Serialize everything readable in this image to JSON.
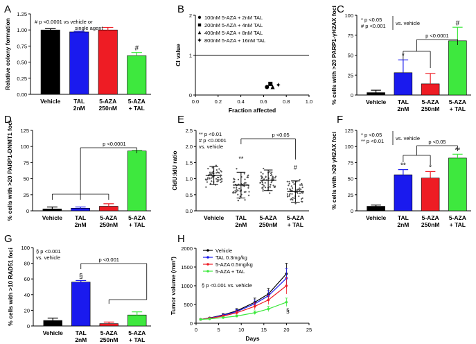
{
  "chart_data": [
    {
      "panel": "A",
      "type": "bar",
      "categories": [
        "Vehicle",
        "TAL 2nM",
        "5-AZA 250nM",
        "5-AZA + TAL"
      ],
      "category_lines": [
        [
          "Vehicle"
        ],
        [
          "TAL",
          "2nM"
        ],
        [
          "5-AZA",
          "250nM"
        ],
        [
          "5-AZA",
          "+ TAL"
        ]
      ],
      "values": [
        1.0,
        0.97,
        1.0,
        0.6
      ],
      "errors": [
        0.02,
        0.01,
        0.04,
        0.05
      ],
      "colors": [
        "#000000",
        "#1a1aee",
        "#ee1c24",
        "#3ee83e"
      ],
      "ylabel": "Relative colony formation",
      "ylim": [
        0,
        1.25
      ],
      "yticks": [
        0.0,
        0.25,
        0.5,
        0.75,
        1.0,
        1.25
      ],
      "ytick_labels": [
        "0.00",
        "0.25",
        "0.50",
        "0.75",
        "1.00",
        "1.25"
      ],
      "annotations": [
        {
          "text": "# p <0.0001 vs vehicle or",
          "lines": [
            "# p <0.0001 vs vehicle or",
            "single agent"
          ]
        }
      ],
      "bar_marks": [
        {
          "index": 3,
          "text": "#"
        }
      ]
    },
    {
      "panel": "B",
      "type": "scatter",
      "xlabel": "Fraction affected",
      "ylabel": "CI value",
      "xlim": [
        0,
        1.0
      ],
      "ylim": [
        0,
        2
      ],
      "xticks": [
        0,
        0.2,
        0.4,
        0.6,
        0.8,
        1.0
      ],
      "xtick_labels": [
        "0.0",
        "0.2",
        "0.4",
        "0.6",
        "0.8",
        "1.0"
      ],
      "yticks": [
        0,
        1,
        2
      ],
      "ytick_labels": [
        "0",
        "1",
        "2"
      ],
      "reference_line": 1,
      "series": [
        {
          "name": "100nM 5-AZA + 2nM TAL",
          "marker": "circle",
          "x": 0.63,
          "y": 0.2
        },
        {
          "name": "200nM 5-AZA + 4nM TAL",
          "marker": "square",
          "x": 0.66,
          "y": 0.28
        },
        {
          "name": "400nM 5-AZA + 8nM TAL",
          "marker": "triangle",
          "x": 0.68,
          "y": 0.2
        },
        {
          "name": "800nM 5-AZA + 16nM TAL",
          "marker": "star",
          "x": 0.73,
          "y": 0.25
        }
      ]
    },
    {
      "panel": "C",
      "type": "bar",
      "categories": [
        "Vehicle",
        "TAL 2nM",
        "5-AZA 250nM",
        "5-AZA + TAL"
      ],
      "category_lines": [
        [
          "Vehicle"
        ],
        [
          "TAL",
          "2nM"
        ],
        [
          "5-AZA",
          "250nM"
        ],
        [
          "5-AZA",
          "+ TAL"
        ]
      ],
      "values": [
        3,
        28,
        14,
        68
      ],
      "errors": [
        3,
        16,
        13,
        17
      ],
      "colors": [
        "#000000",
        "#1a1aee",
        "#ee1c24",
        "#3ee83e"
      ],
      "ylabel": "% cells with >20 PARP1-γH2AX foci",
      "ylim": [
        0,
        100
      ],
      "yticks": [
        0,
        25,
        50,
        75,
        100
      ],
      "ytick_labels": [
        "0",
        "25",
        "50",
        "75",
        "100"
      ],
      "annotations": [
        {
          "text": "* p <0.05",
          "lines": [
            "* p <0.05",
            "# p <0.001"
          ],
          "side": "vs. vehicle"
        }
      ],
      "bar_marks": [
        {
          "index": 1,
          "text": "*"
        },
        {
          "index": 3,
          "text": "#"
        }
      ],
      "bracket": {
        "text": "p <0.0001",
        "from": [
          1,
          2
        ],
        "to": 3
      }
    },
    {
      "panel": "D",
      "type": "bar",
      "categories": [
        "Vehicle",
        "TAL 2nM",
        "5-AZA 250nM",
        "5-AZA + TAL"
      ],
      "category_lines": [
        [
          "Vehicle"
        ],
        [
          "TAL",
          "2nM"
        ],
        [
          "5-AZA",
          "250nM"
        ],
        [
          "5-AZA",
          "+ TAL"
        ]
      ],
      "values": [
        3,
        4,
        7,
        93
      ],
      "errors": [
        3,
        2,
        4,
        1
      ],
      "colors": [
        "#000000",
        "#1a1aee",
        "#ee1c24",
        "#3ee83e"
      ],
      "ylabel": "% cells with >20 PARP1-DNMT1 foci",
      "ylim": [
        0,
        125
      ],
      "yticks": [
        0,
        25,
        50,
        75,
        100,
        125
      ],
      "ytick_labels": [
        "0",
        "25",
        "50",
        "75",
        "100",
        "125"
      ],
      "bracket": {
        "text": "p <0.0001",
        "from": [
          0,
          1,
          2
        ],
        "to": 3
      }
    },
    {
      "panel": "E",
      "type": "scatter",
      "categories": [
        "Vehicle",
        "TAL 2nM",
        "5-AZA 250nM",
        "5-AZA + TAL"
      ],
      "category_lines": [
        [
          "Vehicle"
        ],
        [
          "TAL",
          "2nM"
        ],
        [
          "5-AZA",
          "250nM"
        ],
        [
          "5-AZA",
          "+ TAL"
        ]
      ],
      "means": [
        1.1,
        0.8,
        0.95,
        0.6
      ],
      "sd": [
        0.28,
        0.4,
        0.32,
        0.33
      ],
      "ylabel": "CldU:IdU ratio",
      "ylim": [
        0,
        2.5
      ],
      "yticks": [
        0,
        0.5,
        1.0,
        1.5,
        2.0,
        2.5
      ],
      "ytick_labels": [
        "0.0",
        "0.5",
        "1.0",
        "1.5",
        "2.0",
        "2.5"
      ],
      "annotations": [
        {
          "text": "** p <0.01",
          "lines": [
            "** p <0.01",
            "# p <0.0001",
            "vs. vehicle"
          ]
        }
      ],
      "bar_marks": [
        {
          "index": 1,
          "text": "**"
        },
        {
          "index": 3,
          "text": "#"
        }
      ],
      "bracket": {
        "text": "p <0.05",
        "from": [
          1
        ],
        "to": 3
      }
    },
    {
      "panel": "F",
      "type": "bar",
      "categories": [
        "Vehicle",
        "TAL 2nM",
        "5-AZA 250nM",
        "5-AZA + TAL"
      ],
      "category_lines": [
        [
          "Vehicle"
        ],
        [
          "TAL",
          "2nM"
        ],
        [
          "5-AZA",
          "250nM"
        ],
        [
          "5-AZA",
          "+ TAL"
        ]
      ],
      "values": [
        7,
        56,
        51,
        82
      ],
      "errors": [
        2,
        8,
        10,
        6
      ],
      "colors": [
        "#000000",
        "#1a1aee",
        "#ee1c24",
        "#3ee83e"
      ],
      "ylabel": "% cells with >20 γH2AX foci",
      "ylim": [
        0,
        125
      ],
      "yticks": [
        0,
        25,
        50,
        75,
        100,
        125
      ],
      "ytick_labels": [
        "0",
        "25",
        "50",
        "75",
        "100",
        "125"
      ],
      "annotations": [
        {
          "text": "* p <0.05",
          "lines": [
            "* p <0.05",
            "** p <0.01"
          ],
          "side": "vs. vehicle"
        }
      ],
      "bar_marks": [
        {
          "index": 1,
          "text": "**"
        },
        {
          "index": 2,
          "text": "*"
        },
        {
          "index": 3,
          "text": "**"
        }
      ],
      "bracket": {
        "text": "p <0.05",
        "from": [
          1,
          2
        ],
        "to": 3
      }
    },
    {
      "panel": "G",
      "type": "bar",
      "categories": [
        "Vehicle",
        "TAL 2nM",
        "5-AZA 250nM",
        "5-AZA + TAL"
      ],
      "category_lines": [
        [
          "Vehicle"
        ],
        [
          "TAL",
          "2nM"
        ],
        [
          "5-AZA",
          "250nM"
        ],
        [
          "5-AZA",
          "+ TAL"
        ]
      ],
      "values": [
        7,
        56,
        3,
        14
      ],
      "errors": [
        3,
        2,
        2,
        4
      ],
      "colors": [
        "#000000",
        "#1a1aee",
        "#ee1c24",
        "#3ee83e"
      ],
      "ylabel": "% cells with >10 RAD51 foci",
      "ylim": [
        0,
        100
      ],
      "yticks": [
        0,
        20,
        40,
        60,
        80,
        100
      ],
      "ytick_labels": [
        "0",
        "20",
        "40",
        "60",
        "80",
        "100"
      ],
      "annotations": [
        {
          "text": "§ p <0.001",
          "lines": [
            "§ p <0.001",
            "vs. vehicle"
          ]
        }
      ],
      "bar_marks": [
        {
          "index": 1,
          "text": "§"
        }
      ],
      "bracket": {
        "text": "p <0.001",
        "from": [
          1
        ],
        "to": [
          2,
          3
        ]
      }
    },
    {
      "panel": "H",
      "type": "line",
      "xlabel": "Days",
      "ylabel": "Tumor volume (mm³)",
      "xlim": [
        0,
        25
      ],
      "ylim": [
        0,
        2000
      ],
      "xticks": [
        0,
        5,
        10,
        15,
        20,
        25
      ],
      "yticks": [
        0,
        500,
        1000,
        1500,
        2000
      ],
      "x": [
        1,
        3,
        6,
        9,
        13,
        16,
        20
      ],
      "series": [
        {
          "name": "Vehicle",
          "color": "#000000",
          "values": [
            100,
            140,
            220,
            330,
            560,
            780,
            1320
          ],
          "errors": [
            15,
            20,
            35,
            60,
            110,
            150,
            280
          ]
        },
        {
          "name": "TAL 0.3mg/kg",
          "color": "#1a1aee",
          "values": [
            100,
            135,
            210,
            310,
            520,
            730,
            1200
          ],
          "errors": [
            15,
            20,
            30,
            55,
            100,
            140,
            260
          ]
        },
        {
          "name": "5-AZA 0.5mg/kg",
          "color": "#ee1c24",
          "values": [
            100,
            130,
            190,
            280,
            450,
            620,
            1000
          ],
          "errors": [
            15,
            20,
            30,
            50,
            90,
            120,
            220
          ]
        },
        {
          "name": "5-AZA + TAL",
          "color": "#3ee83e",
          "values": [
            100,
            115,
            150,
            190,
            280,
            380,
            560
          ],
          "errors": [
            10,
            15,
            20,
            30,
            50,
            70,
            110
          ]
        }
      ],
      "annotations": [
        {
          "text": "§ p <0.001 vs. vehicle"
        }
      ],
      "end_mark": "§"
    }
  ]
}
